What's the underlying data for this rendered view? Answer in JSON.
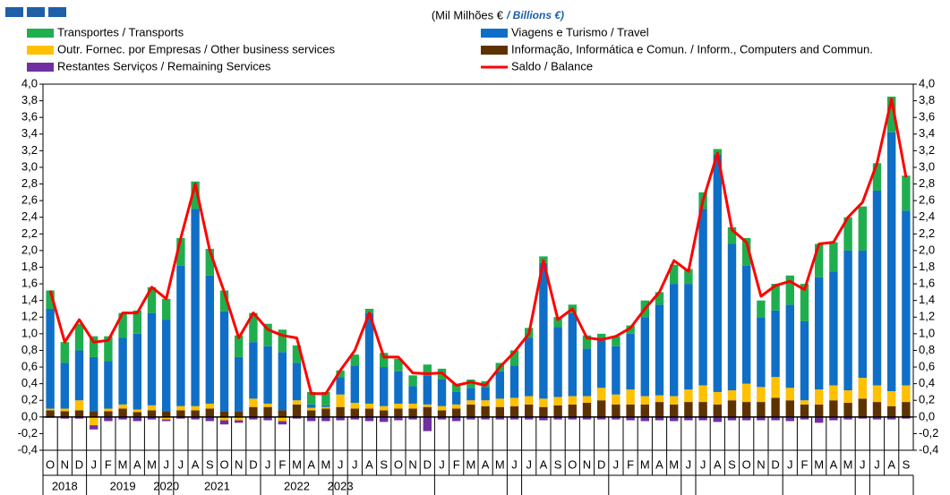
{
  "chart_data": {
    "type": "bar",
    "unit_label": "(Mil Milhões €",
    "unit_label_en": "/ Billions €)",
    "categories": [
      "O",
      "N",
      "D",
      "J",
      "F",
      "M",
      "A",
      "M",
      "J",
      "J",
      "A",
      "S",
      "O",
      "N",
      "D",
      "J",
      "F",
      "M",
      "A",
      "M",
      "J",
      "J",
      "A",
      "S",
      "O",
      "N",
      "D",
      "J",
      "F",
      "M",
      "A",
      "M",
      "J",
      "J",
      "A",
      "S",
      "O",
      "N",
      "D",
      "J",
      "F",
      "M",
      "A",
      "M",
      "J",
      "J",
      "A",
      "S",
      "O",
      "N",
      "D",
      "J",
      "F",
      "M",
      "A",
      "M",
      "J",
      "J",
      "A",
      "S"
    ],
    "years": [
      "2018",
      "2019",
      "2020",
      "2021",
      "2022",
      "2023"
    ],
    "ylim": [
      -0.4,
      4.0
    ],
    "yticks": [
      {
        "value": -0.4,
        "label": "-0,4"
      },
      {
        "value": -0.2,
        "label": "-0,2"
      },
      {
        "value": 0,
        "label": "0,0"
      },
      {
        "value": 0.2,
        "label": "0,2"
      },
      {
        "value": 0.4,
        "label": "0,4"
      },
      {
        "value": 0.6,
        "label": "0,6"
      },
      {
        "value": 0.8,
        "label": "0,8"
      },
      {
        "value": 1.0,
        "label": "1,0"
      },
      {
        "value": 1.2,
        "label": "1,2"
      },
      {
        "value": 1.4,
        "label": "1,4"
      },
      {
        "value": 1.6,
        "label": "1,6"
      },
      {
        "value": 1.8,
        "label": "1,8"
      },
      {
        "value": 2.0,
        "label": "2,0"
      },
      {
        "value": 2.2,
        "label": "2,2"
      },
      {
        "value": 2.4,
        "label": "2,4"
      },
      {
        "value": 2.6,
        "label": "2,6"
      },
      {
        "value": 2.8,
        "label": "2,8"
      },
      {
        "value": 3.0,
        "label": "3,0"
      },
      {
        "value": 3.2,
        "label": "3,2"
      },
      {
        "value": 3.4,
        "label": "3,4"
      },
      {
        "value": 3.6,
        "label": "3,6"
      },
      {
        "value": 3.8,
        "label": "3,8"
      },
      {
        "value": 4.0,
        "label": "4,0"
      }
    ],
    "series": [
      {
        "name": "Transportes / Transports",
        "color": "#1fae4e",
        "values": [
          0.22,
          0.25,
          0.32,
          0.25,
          0.3,
          0.3,
          0.28,
          0.31,
          0.25,
          0.33,
          0.33,
          0.32,
          0.25,
          0.26,
          0.35,
          0.27,
          0.27,
          0.21,
          0.15,
          0.16,
          0.08,
          0.13,
          0.05,
          0.17,
          0.15,
          0.13,
          0.13,
          0.13,
          0.1,
          0.1,
          0.07,
          0.1,
          0.18,
          0.12,
          0.08,
          0.12,
          0.1,
          0.16,
          0.08,
          0.12,
          0.1,
          0.2,
          0.15,
          0.23,
          0.18,
          0.2,
          0.07,
          0.2,
          0.33,
          0.2,
          0.32,
          0.35,
          0.45,
          0.4,
          0.35,
          0.4,
          0.53,
          0.33,
          0.43,
          0.42
        ]
      },
      {
        "name": "Viagens e Turismo / Travel",
        "color": "#0f6fc6",
        "values": [
          1.2,
          0.55,
          0.6,
          0.65,
          0.57,
          0.8,
          0.91,
          1.11,
          1.1,
          1.69,
          2.37,
          1.54,
          1.2,
          0.65,
          0.68,
          0.69,
          0.7,
          0.45,
          0.04,
          0.02,
          0.21,
          0.45,
          1.09,
          0.47,
          0.39,
          0.21,
          0.35,
          0.32,
          0.15,
          0.15,
          0.16,
          0.33,
          0.39,
          0.7,
          1.63,
          0.84,
          1.0,
          0.57,
          0.57,
          0.58,
          0.67,
          0.95,
          1.09,
          1.35,
          1.27,
          2.12,
          2.85,
          1.76,
          1.42,
          0.84,
          0.8,
          1.0,
          0.95,
          1.35,
          1.37,
          1.68,
          1.53,
          2.34,
          3.11,
          2.1
        ]
      },
      {
        "name": "Outr. Fornec. por Empresas  / Other business services",
        "color": "#ffc000",
        "values": [
          0.02,
          0.03,
          0.12,
          -0.1,
          0.03,
          0.05,
          0.03,
          0.06,
          -0.03,
          0.05,
          0.05,
          0.06,
          -0.04,
          -0.04,
          0.1,
          0.04,
          -0.05,
          0.05,
          0.03,
          0.02,
          0.15,
          0.07,
          0.06,
          0.05,
          0.06,
          0.06,
          0.03,
          0.05,
          0.05,
          0.05,
          0.07,
          0.1,
          0.1,
          0.1,
          0.1,
          0.1,
          0.1,
          0.08,
          0.15,
          0.12,
          0.18,
          0.1,
          0.08,
          0.1,
          0.15,
          0.2,
          0.15,
          0.12,
          0.22,
          0.18,
          0.25,
          0.15,
          0.05,
          0.18,
          0.18,
          0.15,
          0.25,
          0.2,
          0.18,
          0.2
        ]
      },
      {
        "name": "Informação, Informática e Comun. / Inform., Computers and Commun.",
        "color": "#5c3300",
        "values": [
          0.08,
          0.07,
          0.08,
          0.07,
          0.07,
          0.1,
          0.06,
          0.08,
          0.07,
          0.08,
          0.08,
          0.1,
          0.07,
          0.07,
          0.12,
          0.12,
          0.08,
          0.15,
          0.08,
          0.1,
          0.12,
          0.1,
          0.1,
          0.08,
          0.1,
          0.1,
          0.12,
          0.08,
          0.1,
          0.15,
          0.13,
          0.12,
          0.13,
          0.15,
          0.12,
          0.14,
          0.15,
          0.17,
          0.2,
          0.15,
          0.15,
          0.15,
          0.18,
          0.15,
          0.18,
          0.18,
          0.15,
          0.2,
          0.18,
          0.18,
          0.23,
          0.2,
          0.15,
          0.15,
          0.2,
          0.17,
          0.22,
          0.18,
          0.13,
          0.18
        ]
      },
      {
        "name": "Restantes Serviços / Remaining Services",
        "color": "#7030a0",
        "values": [
          -0.01,
          -0.02,
          -0.02,
          -0.05,
          -0.05,
          -0.03,
          -0.05,
          -0.03,
          -0.02,
          -0.02,
          -0.03,
          -0.05,
          -0.05,
          -0.03,
          -0.03,
          -0.04,
          -0.04,
          -0.02,
          -0.05,
          -0.05,
          -0.04,
          -0.03,
          -0.05,
          -0.06,
          -0.04,
          -0.03,
          -0.17,
          -0.03,
          -0.05,
          -0.03,
          -0.03,
          -0.03,
          -0.03,
          -0.03,
          -0.04,
          -0.03,
          -0.03,
          -0.03,
          -0.03,
          -0.03,
          -0.04,
          -0.05,
          -0.04,
          -0.05,
          -0.04,
          -0.04,
          -0.06,
          -0.04,
          -0.04,
          -0.04,
          -0.04,
          -0.05,
          -0.03,
          -0.07,
          -0.04,
          -0.03,
          -0.02,
          -0.03,
          -0.03,
          -0.02
        ]
      },
      {
        "name": "Saldo / Balance",
        "color": "#ff0000",
        "type": "line",
        "values": [
          1.52,
          0.9,
          1.17,
          0.9,
          0.92,
          1.25,
          1.25,
          1.56,
          1.42,
          2.15,
          2.8,
          2.0,
          1.5,
          0.95,
          1.25,
          1.05,
          0.98,
          0.95,
          0.28,
          0.28,
          0.56,
          0.8,
          1.25,
          0.72,
          0.72,
          0.53,
          0.52,
          0.53,
          0.38,
          0.42,
          0.38,
          0.6,
          0.78,
          1.0,
          1.88,
          1.17,
          1.3,
          0.95,
          0.93,
          0.97,
          1.07,
          1.3,
          1.5,
          1.88,
          1.75,
          2.6,
          3.17,
          2.25,
          2.1,
          1.45,
          1.58,
          1.63,
          1.53,
          2.08,
          2.1,
          2.4,
          2.58,
          3.05,
          3.82,
          2.88
        ]
      }
    ]
  }
}
